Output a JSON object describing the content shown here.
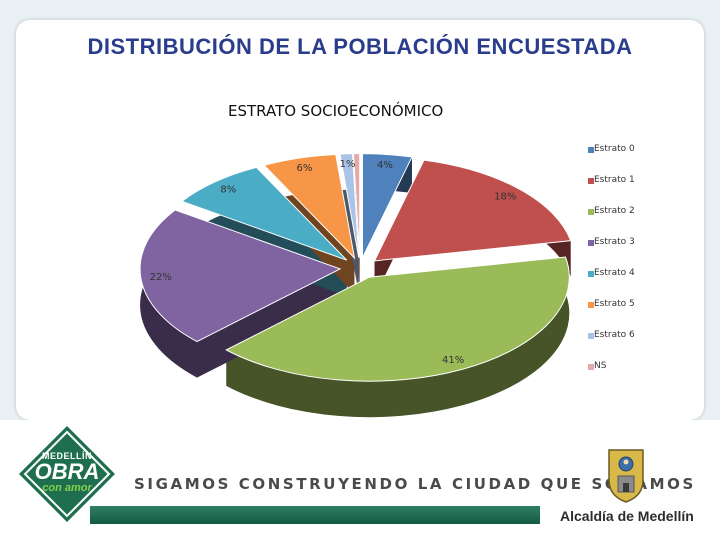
{
  "header": {
    "title": "DISTRIBUCIÓN DE LA POBLACIÓN ENCUESTADA"
  },
  "chart_data": {
    "type": "pie",
    "title": "ESTRATO SOCIOECONÓMICO",
    "categories": [
      "Estrato 0",
      "Estrato 1",
      "Estrato 2",
      "Estrato 3",
      "Estrato 4",
      "Estrato 5",
      "Estrato 6",
      "NS"
    ],
    "values": [
      4,
      18,
      41,
      22,
      8,
      6,
      1,
      0.5
    ],
    "data_labels": [
      "4%",
      "18%",
      "41%",
      "22%",
      "8%",
      "6%",
      "1%",
      ""
    ],
    "colors": [
      "#4f81bd",
      "#c0504d",
      "#9bbb59",
      "#8064a2",
      "#4bacc6",
      "#f79646",
      "#a9c4e6",
      "#e6a9a9"
    ],
    "legend_position": "right",
    "style": "3d-exploded"
  },
  "footer": {
    "slogan": "SIGAMOS CONSTRUYENDO LA CIUDAD QUE SOÑAMOS",
    "logo": {
      "line1": "MEDELLÍN",
      "line2": "OBRA",
      "line3": "con amor"
    },
    "org": "Alcaldía de Medellín"
  }
}
